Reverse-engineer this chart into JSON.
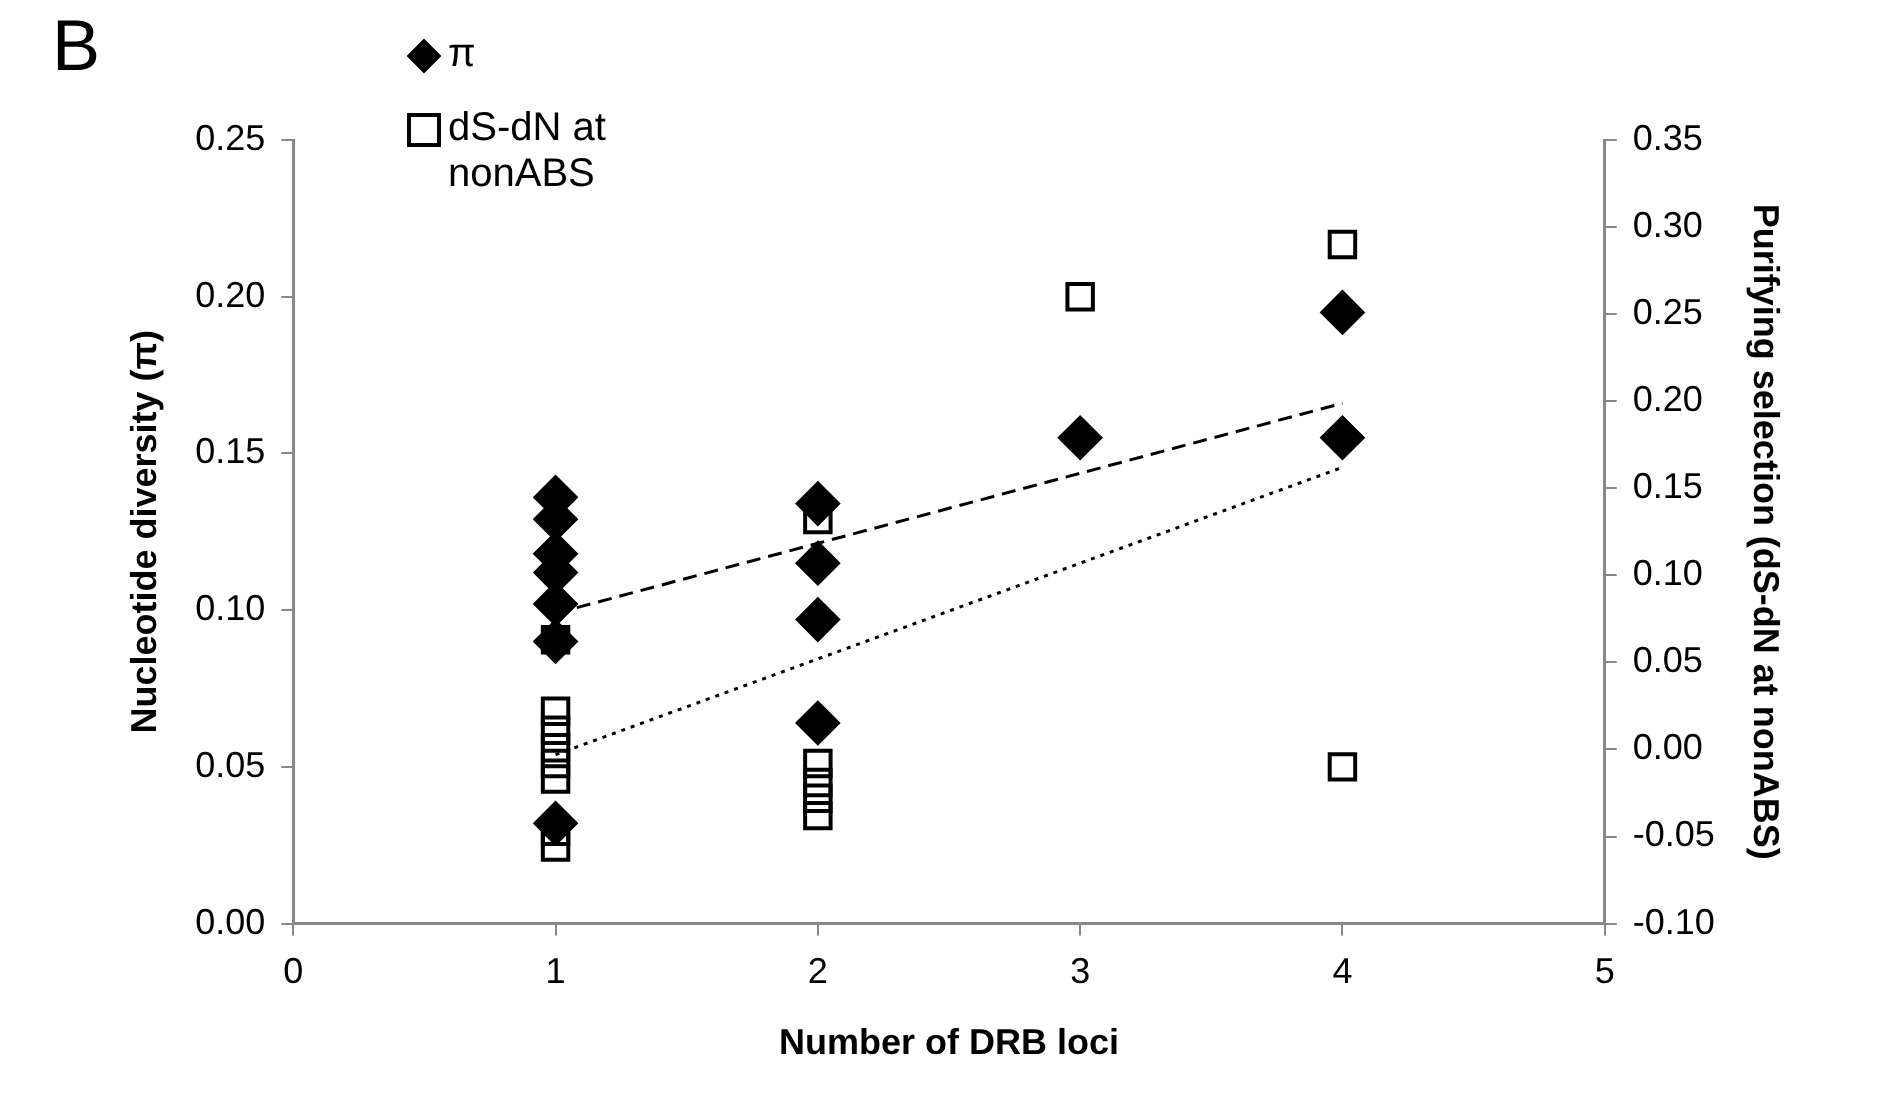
{
  "chart_data": {
    "type": "scatter",
    "xlabel": "Number of DRB loci",
    "ylabel": "Nucleotide diversity (π)",
    "y2label": "Purifying selection (dS-dN at nonABS)",
    "annotations": [
      "B"
    ],
    "series": [
      {
        "name": "π",
        "marker": "diamond",
        "color": "#000000",
        "x": [
          1,
          1,
          1,
          1,
          1,
          1,
          1,
          2,
          2,
          2,
          2,
          3,
          4,
          4
        ],
        "values": [
          0.136,
          0.129,
          0.118,
          0.112,
          0.102,
          0.09,
          0.032,
          0.134,
          0.115,
          0.097,
          0.064,
          0.155,
          0.195,
          0.155
        ]
      },
      {
        "name": "dS-dN at nonABS",
        "marker": "square",
        "axis": "y2",
        "color": "#000000",
        "x": [
          1,
          1,
          1,
          1,
          1,
          1,
          1,
          1,
          2,
          2,
          2,
          2,
          2,
          3,
          4,
          4
        ],
        "values": [
          0.063,
          0.022,
          0.011,
          0.001,
          -0.008,
          -0.017,
          -0.047,
          -0.056,
          0.132,
          -0.008,
          -0.019,
          -0.028,
          -0.038,
          0.26,
          0.29,
          -0.01
        ]
      },
      {
        "type": "line",
        "marker": "none",
        "line_style": "dashed",
        "color": "#000000",
        "x": [
          1,
          4
        ],
        "values": [
          0.099,
          0.166
        ]
      },
      {
        "type": "line",
        "marker": "none",
        "line_style": "dotted",
        "axis": "y2",
        "color": "#000000",
        "x": [
          1,
          4
        ],
        "values": [
          -0.003,
          0.162
        ]
      }
    ],
    "xlim": [
      0,
      5
    ],
    "xticks": [
      0,
      1,
      2,
      3,
      4,
      5
    ],
    "ylim": [
      0,
      0.25
    ],
    "yticks": [
      {
        "value": 0,
        "label": "0.00"
      },
      0.05,
      {
        "value": 0.1,
        "label": "0.10"
      },
      0.15,
      {
        "value": 0.2,
        "label": "0.20"
      },
      0.25
    ],
    "y2lim": [
      -0.1,
      0.35
    ],
    "y2ticks": [
      {
        "value": -0.1,
        "label": "-0.10"
      },
      -0.05,
      {
        "value": 0,
        "label": "0.00"
      },
      0.05,
      {
        "value": 0.1,
        "label": "0.10"
      },
      0.15,
      {
        "value": 0.2,
        "label": "0.20"
      },
      0.25,
      {
        "value": 0.3,
        "label": "0.30"
      },
      0.35
    ],
    "grid": false,
    "legend": "top left"
  }
}
